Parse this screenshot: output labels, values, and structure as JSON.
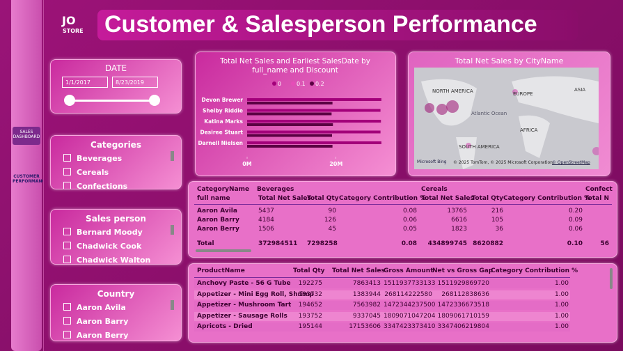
{
  "header": {
    "logo": "JO",
    "logo_sub": "STORE",
    "title": "Customer & Salesperson Performance"
  },
  "nav": [
    "SALES DASHBOARD",
    "CUSTOMER PERFORMANCE"
  ],
  "date_filter": {
    "title": "DATE",
    "start": "1/1/2017",
    "end": "8/23/2019"
  },
  "categories_slicer": {
    "title": "Categories",
    "items": [
      "Beverages",
      "Cereals",
      "Confections"
    ]
  },
  "salesperson_slicer": {
    "title": "Sales person",
    "items": [
      "Bernard Moody",
      "Chadwick Cook",
      "Chadwick Walton"
    ]
  },
  "country_slicer": {
    "title": "Country",
    "items": [
      "Aaron Avila",
      "Aaron Barry",
      "Aaron Berry"
    ]
  },
  "chart_data": {
    "type": "bar",
    "orientation": "horizontal",
    "title": "Total Net Sales and Earliest SalesDate by full_name and Discount",
    "categories": [
      "Devon Brewer",
      "Shelby Riddle",
      "Katina Marks",
      "Desiree Stuart",
      "Darnell Nielsen"
    ],
    "series": [
      {
        "name": "0",
        "color": "#a3007a",
        "values": [
          30200000,
          30000000,
          30100000,
          30000000,
          30200000
        ]
      },
      {
        "name": "0.1",
        "color": "#e64db8",
        "values": [
          null,
          null,
          null,
          null,
          null
        ]
      },
      {
        "name": "0.2",
        "color": "#5a0042",
        "values": [
          19200000,
          19000000,
          19300000,
          19100000,
          19200000
        ]
      }
    ],
    "xlim": [
      0,
      31000000
    ],
    "xticks": [
      {
        "value": 0,
        "label": "0M"
      },
      {
        "value": 20000000,
        "label": "20M"
      }
    ]
  },
  "map": {
    "title": "Total Net Sales by CityName",
    "labels": [
      "NORTH AMERICA",
      "EUROPE",
      "ASIA",
      "Atlantic Ocean",
      "AFRICA",
      "SOUTH AMERICA"
    ],
    "brand": "Microsoft Bing",
    "credits": "© 2025 TomTom, © 2025 Microsoft Corporation,",
    "osm": "© OpenStreetMap"
  },
  "matrix": {
    "top_header": [
      "CategoryName",
      "Beverages",
      "Cereals",
      "Confect"
    ],
    "header": [
      "full name",
      "Total Net Sales",
      "Total Qty",
      "Category Contribution %",
      "Total Net Sales",
      "Total Qty",
      "Category Contribution %",
      "Total N"
    ],
    "rows": [
      [
        "Aaron Avila",
        "5437",
        "90",
        "0.08",
        "13765",
        "216",
        "0.20"
      ],
      [
        "Aaron Barry",
        "4184",
        "126",
        "0.06",
        "6616",
        "105",
        "0.09"
      ],
      [
        "Aaron Berry",
        "1506",
        "45",
        "0.05",
        "1823",
        "36",
        "0.06"
      ]
    ],
    "total": [
      "Total",
      "372984511",
      "7298258",
      "0.08",
      "434899745",
      "8620882",
      "0.10",
      "56"
    ]
  },
  "products": {
    "header": [
      "ProductName",
      "Total Qty",
      "Total Net Sales",
      "Gross Amount",
      "Net vs Gross Gap",
      "Category Contribution %"
    ],
    "rows": [
      [
        "Anchovy Paste - 56 G Tube",
        "192275",
        "7863413",
        "1511937733133",
        "1511929869720",
        "1.00"
      ],
      [
        "Appetizer - Mini Egg Roll, Shrimp",
        "193732",
        "1383944",
        "268114222580",
        "268112838636",
        "1.00"
      ],
      [
        "Appetizer - Mushroom Tart",
        "194652",
        "7563982",
        "1472344237500",
        "1472336673518",
        "1.00"
      ],
      [
        "Appetizer - Sausage Rolls",
        "193752",
        "9337045",
        "1809071047204",
        "1809061710159",
        "1.00"
      ],
      [
        "Apricots - Dried",
        "195144",
        "17153606",
        "3347423373410",
        "3347406219804",
        "1.00"
      ]
    ]
  }
}
